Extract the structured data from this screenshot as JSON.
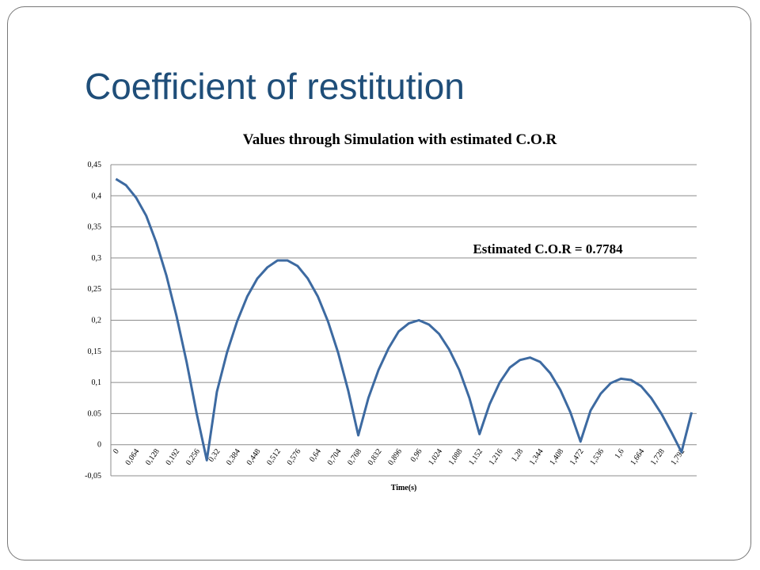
{
  "slide": {
    "title": "Coefficient of restitution"
  },
  "chart_data": {
    "type": "line",
    "title": "Values through Simulation with estimated C.O.R",
    "x_label": "Time(s)",
    "annotation": "Estimated C.O.R = 0.7784",
    "categories": [
      "0",
      null,
      "0,064",
      null,
      "0,128",
      null,
      "0,192",
      null,
      "0,256",
      null,
      "0,32",
      null,
      "0,384",
      null,
      "0,448",
      null,
      "0,512",
      null,
      "0,576",
      null,
      "0,64",
      null,
      "0,704",
      null,
      "0,768",
      null,
      "0,832",
      null,
      "0,896",
      null,
      "0,96",
      null,
      "1,024",
      null,
      "1,088",
      null,
      "1,152",
      null,
      "1,216",
      null,
      "1,28",
      null,
      "1,344",
      null,
      "1,408",
      null,
      "1,472",
      null,
      "1,536",
      null,
      "1,6",
      null,
      "1,664",
      null,
      "1,728",
      null,
      "1,792",
      null
    ],
    "series": [
      {
        "name": "Values",
        "color": "#3d6aa1",
        "values": [
          0.427,
          0.417,
          0.397,
          0.368,
          0.325,
          0.272,
          0.207,
          0.133,
          0.05,
          -0.025,
          0.085,
          0.148,
          0.198,
          0.238,
          0.267,
          0.285,
          0.296,
          0.296,
          0.287,
          0.267,
          0.238,
          0.198,
          0.148,
          0.087,
          0.015,
          0.075,
          0.12,
          0.155,
          0.182,
          0.195,
          0.2,
          0.193,
          0.178,
          0.153,
          0.12,
          0.075,
          0.017,
          0.065,
          0.1,
          0.124,
          0.136,
          0.14,
          0.133,
          0.115,
          0.088,
          0.052,
          0.005,
          0.055,
          0.082,
          0.099,
          0.106,
          0.104,
          0.094,
          0.075,
          0.05,
          0.02,
          -0.012,
          0.052
        ]
      }
    ],
    "ylim": [
      -0.05,
      0.45
    ],
    "yticks": [
      {
        "value": -0.05,
        "label": "-0,05"
      },
      0,
      {
        "value": 0.05,
        "label": "0.05"
      },
      {
        "value": 0.1,
        "label": "0,1"
      },
      {
        "value": 0.15,
        "label": "0,15"
      },
      {
        "value": 0.2,
        "label": "0,2"
      },
      {
        "value": 0.25,
        "label": "0,25"
      },
      {
        "value": 0.3,
        "label": "0,3"
      },
      {
        "value": 0.35,
        "label": "0,35"
      },
      {
        "value": 0.4,
        "label": "0,4"
      },
      {
        "value": 0.45,
        "label": "0,45"
      }
    ],
    "grid": true
  }
}
